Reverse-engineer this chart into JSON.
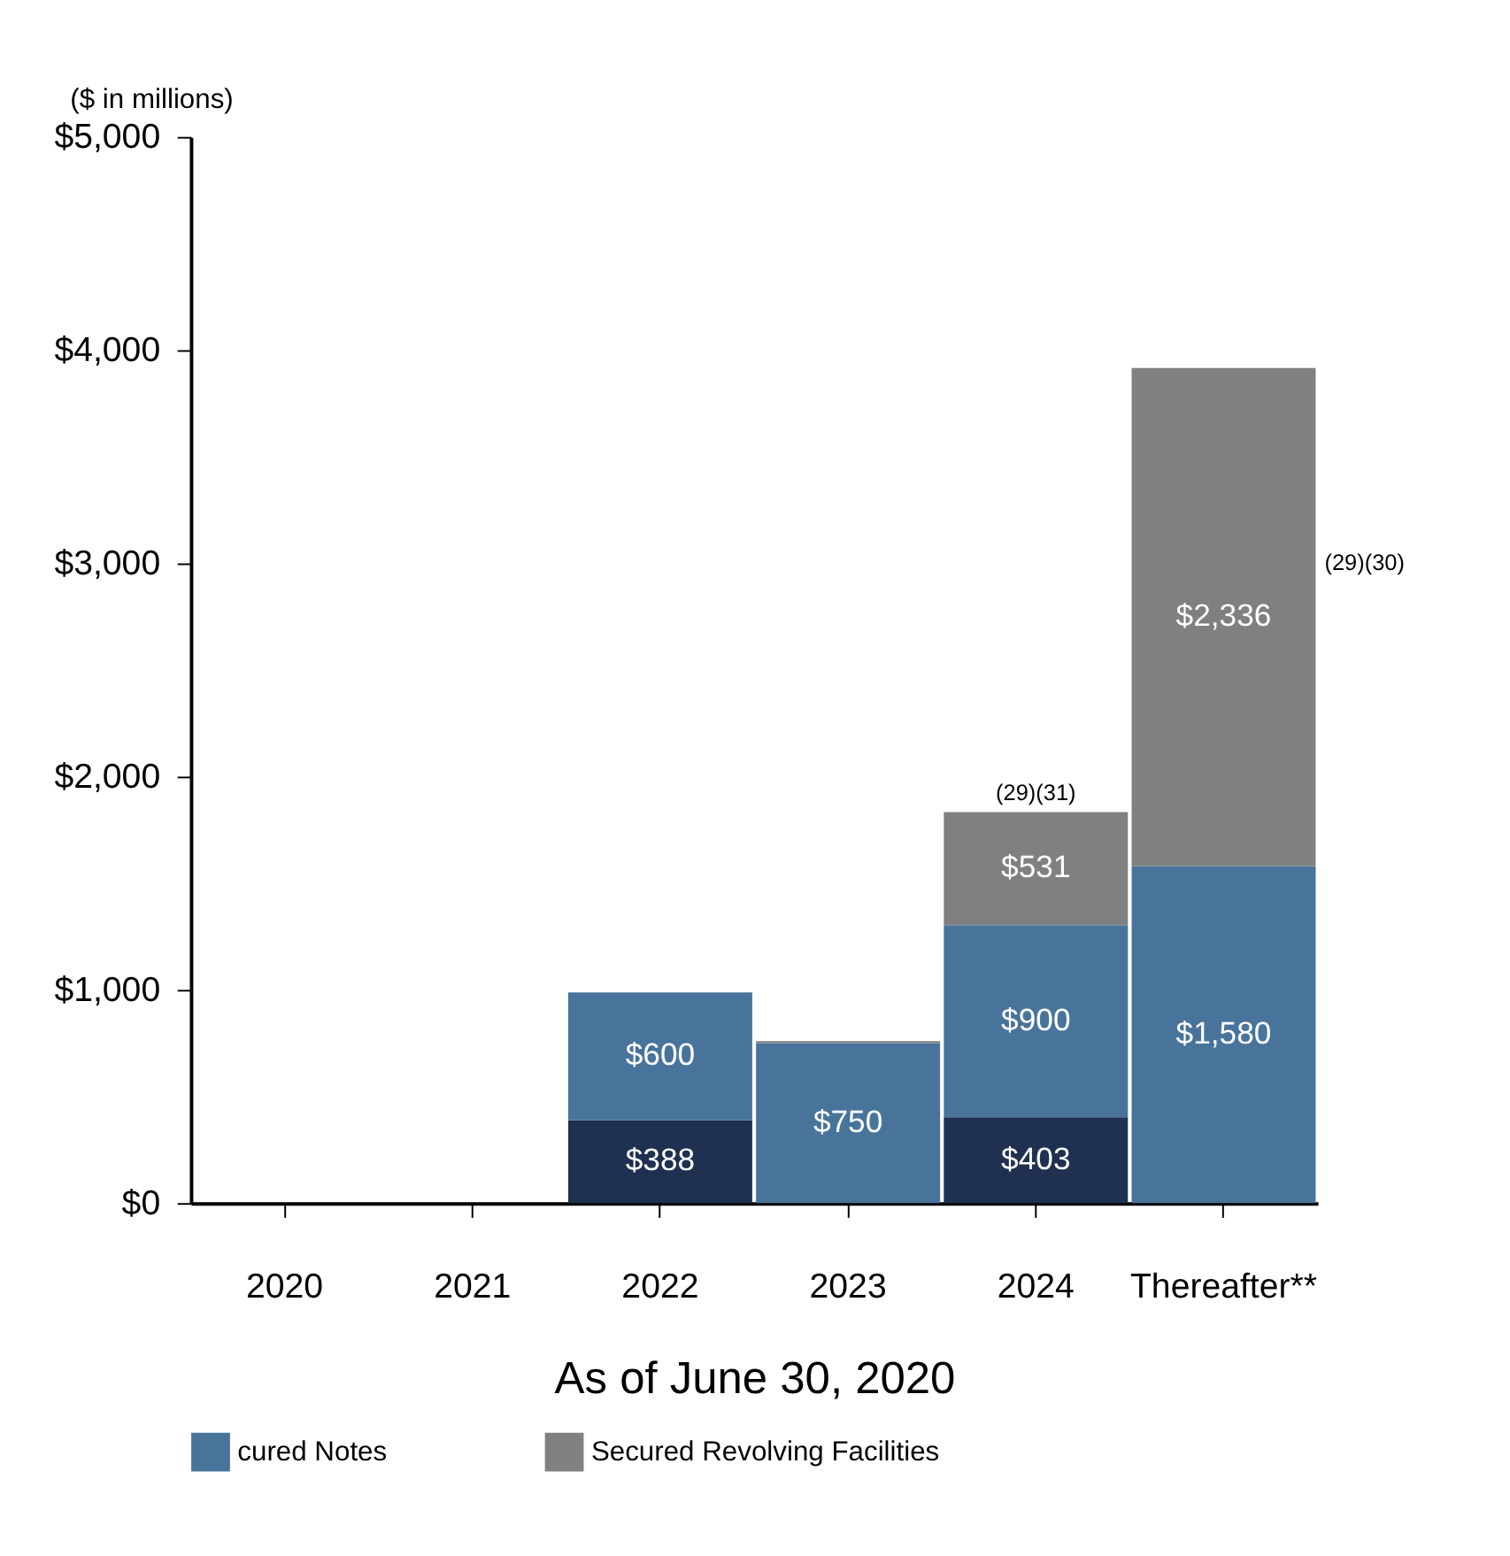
{
  "chart_data": {
    "type": "bar",
    "stacked": true,
    "xlabel": "As of June 30, 2020",
    "ylabel": "($ in millions)",
    "categories": [
      "2020",
      "2021",
      "2022",
      "2023",
      "2024",
      "Thereafter**"
    ],
    "series": [
      {
        "color": "#1f3050",
        "values": [
          null,
          null,
          388,
          null,
          403,
          null
        ],
        "value_labels": [
          null,
          null,
          "$388",
          null,
          "$403",
          null
        ]
      },
      {
        "name": "cured Notes",
        "color": "#48749b",
        "values": [
          null,
          null,
          600,
          750,
          900,
          1580
        ],
        "value_labels": [
          null,
          null,
          "$600",
          "$750",
          "$900",
          "$1,580"
        ]
      },
      {
        "name": "Secured Revolving Facilities",
        "color": "#808080",
        "values": [
          null,
          null,
          null,
          10,
          531,
          2336
        ],
        "value_labels": [
          null,
          null,
          null,
          null,
          "$531",
          "$2,336"
        ]
      }
    ],
    "ylim": [
      0,
      5000
    ],
    "yticks": [
      {
        "value": 0,
        "label": "$0"
      },
      {
        "value": 1000,
        "label": "$1,000"
      },
      {
        "value": 2000,
        "label": "$2,000"
      },
      {
        "value": 3000,
        "label": "$3,000"
      },
      {
        "value": 4000,
        "label": "$4,000"
      },
      {
        "value": 5000,
        "label": "$5,000"
      }
    ],
    "annotations": [
      {
        "text": "(29)(31)",
        "x": "2024",
        "y": 1834
      },
      "(29)(30)"
    ],
    "grid": false,
    "legend": "bottom"
  }
}
